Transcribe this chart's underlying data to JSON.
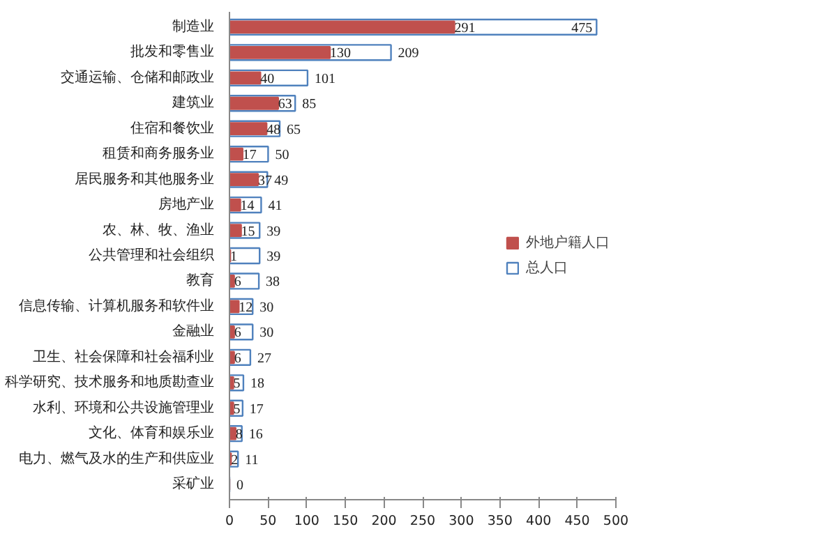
{
  "chart_data": {
    "type": "bar",
    "orientation": "horizontal",
    "categories": [
      "制造业",
      "批发和零售业",
      "交通运输、仓储和邮政业",
      "建筑业",
      "住宿和餐饮业",
      "租赁和商务服务业",
      "居民服务和其他服务业",
      "房地产业",
      "农、林、牧、渔业",
      "公共管理和社会组织",
      "教育",
      "信息传输、计算机服务和软件业",
      "金融业",
      "卫生、社会保障和社会福利业",
      "科学研究、技术服务和地质勘查业",
      "水利、环境和公共设施管理业",
      "文化、体育和娱乐业",
      "电力、燃气及水的生产和供应业",
      "采矿业"
    ],
    "series": [
      {
        "name": "外地户籍人口",
        "color": "#c0504d",
        "values": [
          291,
          130,
          40,
          63,
          48,
          17,
          37,
          14,
          15,
          1,
          6,
          12,
          6,
          6,
          5,
          5,
          8,
          2,
          0
        ],
        "value_labels": [
          "291",
          "130",
          "40",
          "63",
          "48",
          "17",
          "37",
          "14",
          "15",
          "1",
          "6",
          "12",
          "6",
          "6",
          "5",
          "5",
          "8",
          "2",
          null
        ]
      },
      {
        "name": "总人口",
        "color": "#4f81bd",
        "values": [
          475,
          209,
          101,
          85,
          65,
          50,
          49,
          41,
          39,
          39,
          38,
          30,
          30,
          27,
          18,
          17,
          16,
          11,
          0
        ],
        "value_labels": [
          "475",
          "209",
          "101",
          "85",
          "65",
          "50",
          "49",
          "41",
          "39",
          "39",
          "38",
          "30",
          "30",
          "27",
          "18",
          "17",
          "16",
          "11",
          "0"
        ]
      }
    ],
    "xlim": [
      0,
      500
    ],
    "xticks": [
      0,
      50,
      100,
      150,
      200,
      250,
      300,
      350,
      400,
      450,
      500
    ],
    "grid": false,
    "legend": "right"
  }
}
